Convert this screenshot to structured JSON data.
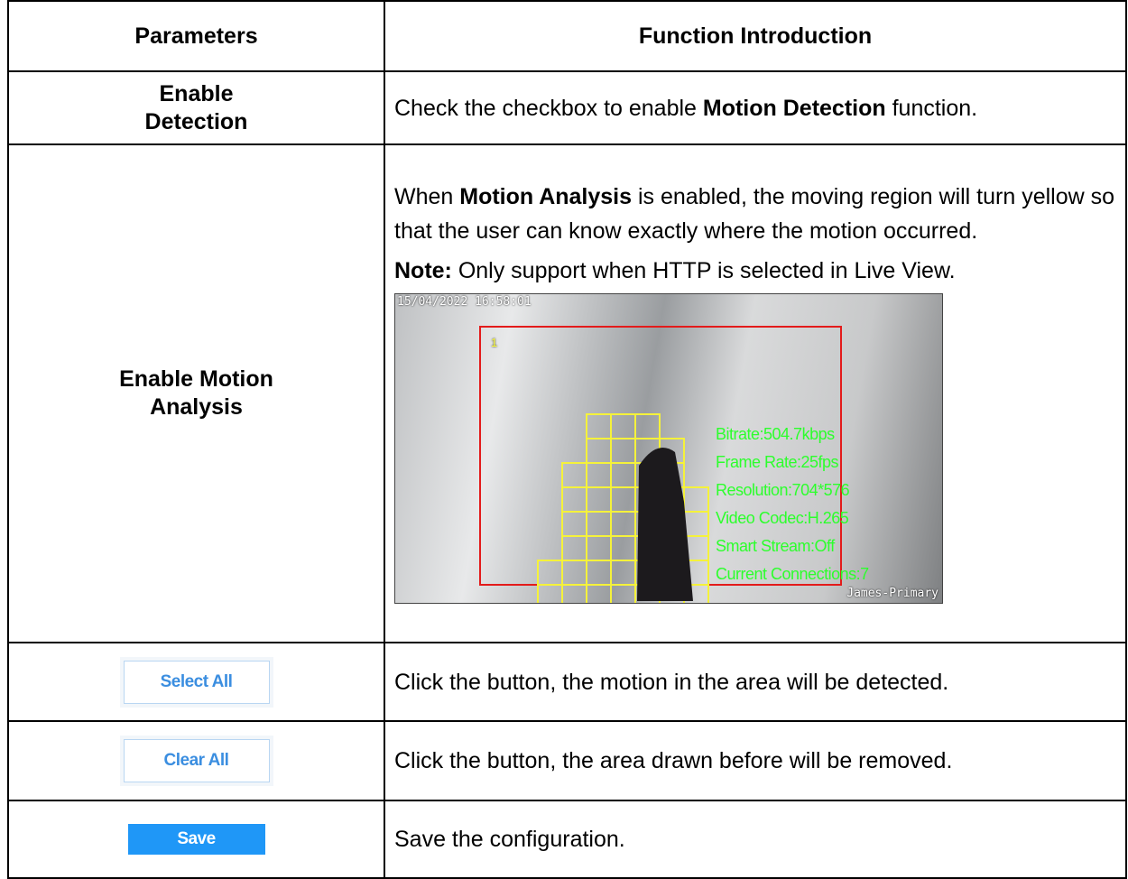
{
  "table": {
    "header": [
      "Parameters",
      "Function Introduction"
    ],
    "rows": [
      {
        "parameter": "Enable Detection",
        "description": [
          {
            "text": "Check the checkbox to enable "
          },
          {
            "text": "Motion Detection",
            "bold": true
          },
          {
            "text": " function."
          }
        ]
      },
      {
        "parameter": "Enable Motion Analysis",
        "description": [
          {
            "text": "When "
          },
          {
            "text": "Motion Analysis",
            "bold": true
          },
          {
            "text": " is enabled, the moving region will turn yellow so that the user can know exactly where the motion occurred."
          }
        ],
        "note": [
          {
            "text": "Note:",
            "bold": true
          },
          {
            "text": " Only support when HTTP is selected in Live View."
          }
        ],
        "image": {
          "timestamp": "15/04/2022 16:58:01",
          "area_number": "1",
          "overlay": [
            "Bitrate:504.7kbps",
            "Frame Rate:25fps",
            "Resolution:704*576",
            "Video Codec:H.265",
            "Smart Stream:Off",
            "Current Connections:7"
          ],
          "camera_name": "James-Primary"
        }
      },
      {
        "button": "Select All",
        "description": [
          {
            "text": "Click the button, the motion in the area will be detected."
          }
        ]
      },
      {
        "button": "Clear All",
        "description": [
          {
            "text": "Click the button, the area drawn before will be removed."
          }
        ]
      },
      {
        "button": "Save",
        "description": [
          {
            "text": "Save the configuration."
          }
        ]
      }
    ]
  }
}
